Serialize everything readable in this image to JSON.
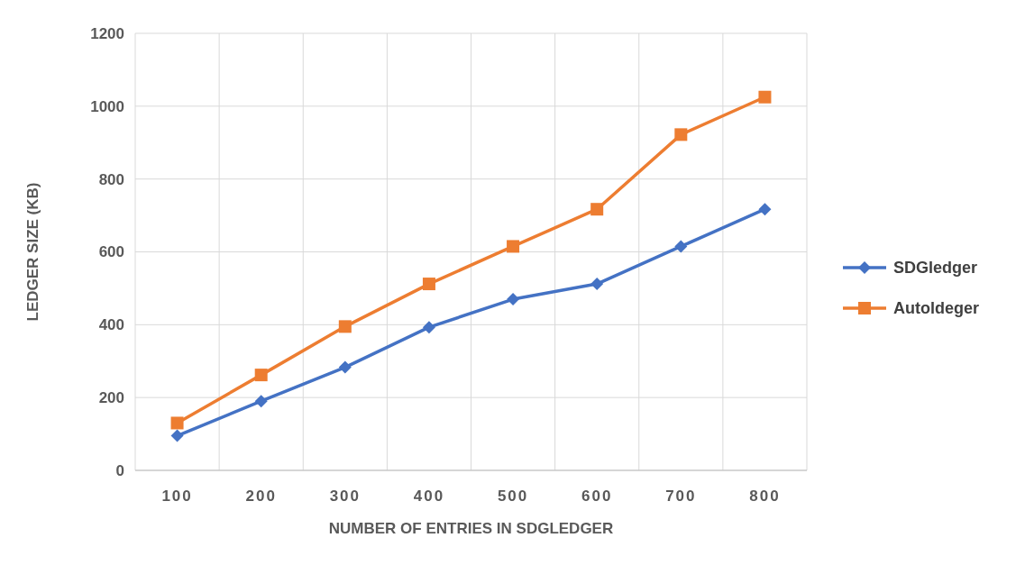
{
  "chart_data": {
    "type": "line",
    "xlabel": "NUMBER OF ENTRIES IN SDGLEDGER",
    "ylabel": "LEDGER SIZE (KB)",
    "categories": [
      "100",
      "200",
      "300",
      "400",
      "500",
      "600",
      "700",
      "800"
    ],
    "series": [
      {
        "name": "SDGledger",
        "color": "#4472c4",
        "marker": "diamond",
        "values": [
          95,
          190,
          283,
          393,
          470,
          512,
          615,
          717
        ]
      },
      {
        "name": "Autoldeger",
        "color": "#ed7d31",
        "marker": "square",
        "values": [
          130,
          262,
          395,
          512,
          615,
          717,
          922,
          1025
        ]
      }
    ],
    "ylim": [
      0,
      1200
    ],
    "yticks": [
      0,
      200,
      400,
      600,
      800,
      1000,
      1200
    ],
    "grid": true,
    "legend": "right",
    "line_style": "solid"
  }
}
